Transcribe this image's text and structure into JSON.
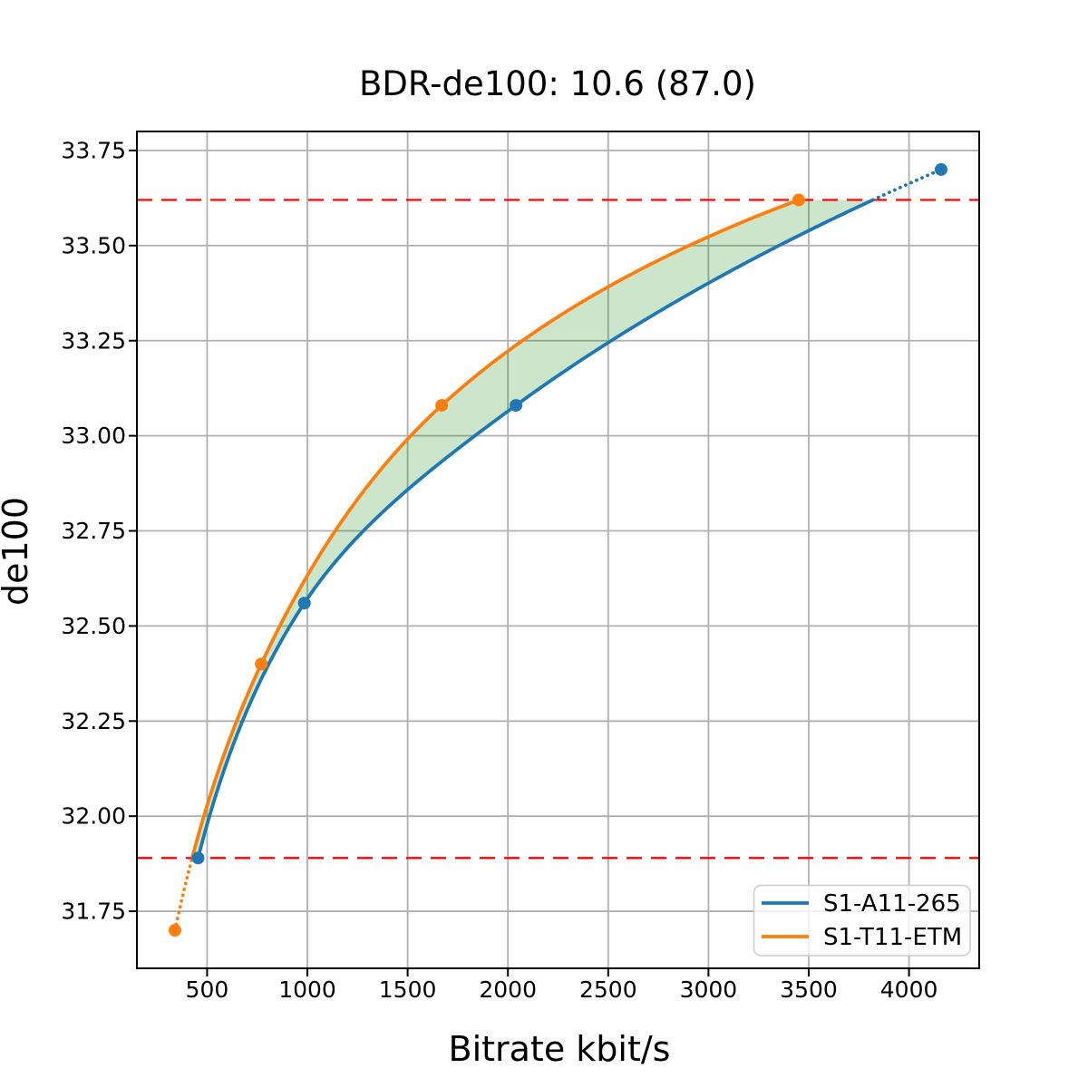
{
  "chart_data": {
    "type": "line",
    "title": "BDR-de100: 10.6 (87.0)",
    "xlabel": "Bitrate kbit/s",
    "ylabel": "de100",
    "xlim": [
      150,
      4350
    ],
    "ylim": [
      31.6,
      33.8
    ],
    "xticks": [
      500,
      1000,
      1500,
      2000,
      2500,
      3000,
      3500,
      4000
    ],
    "yticks": [
      31.75,
      32.0,
      32.25,
      32.5,
      32.75,
      33.0,
      33.25,
      33.5,
      33.75
    ],
    "grid": true,
    "grid_color": "#b0b0b0",
    "interpolation": "pchip-logx",
    "legend_position": "lower right",
    "series": [
      {
        "name": "S1-A11-265",
        "color": "#1f77b4",
        "marker": "circle",
        "points": [
          [
            455,
            31.89
          ],
          [
            985,
            32.56
          ],
          [
            2040,
            33.08
          ],
          [
            4160,
            33.7
          ]
        ]
      },
      {
        "name": "S1-T11-ETM",
        "color": "#ff7f0e",
        "marker": "circle",
        "points": [
          [
            340,
            31.7
          ],
          [
            770,
            32.4
          ],
          [
            1670,
            33.08
          ],
          [
            3450,
            33.62
          ]
        ]
      }
    ],
    "reference_hlines": {
      "color": "#ff0000",
      "style": "dashed",
      "values": [
        31.89,
        33.62
      ]
    },
    "fill_between": {
      "color": "#008000",
      "alpha": 0.2,
      "y_range": [
        31.89,
        33.62
      ]
    }
  }
}
